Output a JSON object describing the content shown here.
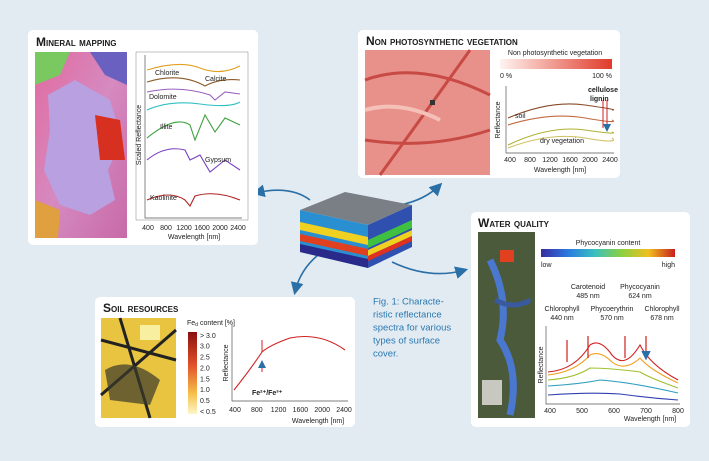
{
  "caption": [
    "Fig. 1: Characte-",
    "ristic reflectance",
    "spectra for various",
    "types of surface",
    "cover."
  ],
  "panels": {
    "mineral": {
      "title": "Mineral mapping",
      "y_label": "Scaled Reflectance",
      "x_label": "Wavelength [nm]",
      "x_ticks": [
        "400",
        "800",
        "1200",
        "1600",
        "2000",
        "2400"
      ],
      "curves": [
        "Chlorite",
        "Calcite",
        "Dolomite",
        "Illite",
        "Gypsum",
        "Kaolinite"
      ]
    },
    "vegetation": {
      "title": "Non photosynthetic vegetation",
      "legend_title": "Non photosynthetic vegetation",
      "legend_min": "0 %",
      "legend_max": "100 %",
      "y_label": "Reflectance",
      "x_label": "Wavelength [nm]",
      "x_ticks": [
        "400",
        "800",
        "1200",
        "1600",
        "2000",
        "2400"
      ],
      "annotations": [
        "cellulose",
        "lignin",
        "soil",
        "dry vegetation"
      ]
    },
    "soil": {
      "title": "Soil resources",
      "legend_title": "Fe",
      "legend_subscript": "d",
      "legend_unit": "content [%]",
      "legend_ticks": [
        "> 3.0",
        "3.0",
        "2.5",
        "2.0",
        "1.5",
        "1.0",
        "0.5",
        "< 0.5"
      ],
      "annotation": "Fe²⁺/Fe³⁺",
      "y_label": "Reflectance",
      "x_label": "Wavelength [nm]",
      "x_ticks": [
        "400",
        "800",
        "1200",
        "1600",
        "2000",
        "2400"
      ]
    },
    "water": {
      "title": "Water quality",
      "legend_title": "Phycocyanin content",
      "legend_min": "low",
      "legend_max": "high",
      "pigments": [
        {
          "name": "Carotenoid",
          "nm": "485 nm"
        },
        {
          "name": "Phycocyanin",
          "nm": "624 nm"
        },
        {
          "name": "Chlorophyll",
          "nm": "440 nm"
        },
        {
          "name": "Phycoerythrin",
          "nm": "570 nm"
        },
        {
          "name": "Chlorophyll",
          "nm": "678 nm"
        }
      ],
      "y_label": "Reflectance",
      "x_label": "Wavelength [nm]",
      "x_ticks": [
        "400",
        "500",
        "600",
        "700",
        "800"
      ]
    }
  }
}
